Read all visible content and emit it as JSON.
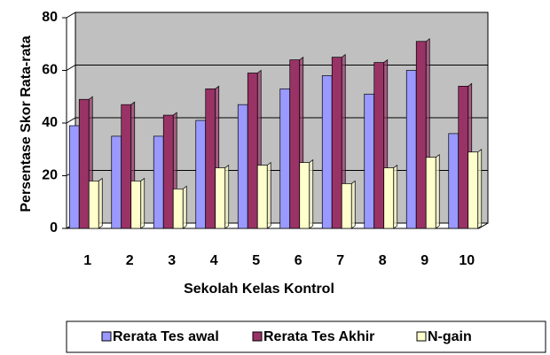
{
  "chart_data": {
    "type": "bar",
    "xlabel": "Sekolah Kelas Kontrol",
    "ylabel": "Persentase Skor Rata-rata",
    "categories": [
      "1",
      "2",
      "3",
      "4",
      "5",
      "6",
      "7",
      "8",
      "9",
      "10"
    ],
    "series": [
      {
        "name": "Rerata Tes awal",
        "color": "#9999ff",
        "values": [
          39,
          35,
          35,
          41,
          47,
          53,
          58,
          51,
          60,
          36
        ]
      },
      {
        "name": "Rerata Tes Akhir",
        "color": "#993366",
        "values": [
          49,
          47,
          43,
          53,
          59,
          64,
          65,
          63,
          71,
          54
        ]
      },
      {
        "name": "N-gain",
        "color": "#ffffcc",
        "values": [
          18,
          18,
          15,
          23,
          24,
          25,
          17,
          23,
          27,
          29
        ]
      }
    ],
    "ylim": [
      0,
      80
    ],
    "yticks": [
      0,
      20,
      40,
      60,
      80
    ],
    "grid": true,
    "legend": "bottom"
  }
}
